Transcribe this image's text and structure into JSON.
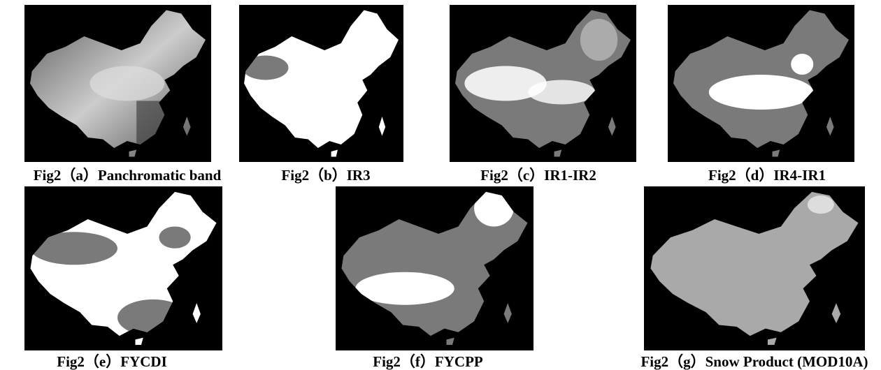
{
  "figures": [
    {
      "caption": "Fig2（a）Panchromatic band"
    },
    {
      "caption": "Fig2（b）IR3"
    },
    {
      "caption": "Fig2（c）IR1-IR2"
    },
    {
      "caption": "Fig2（d）IR4-IR1"
    },
    {
      "caption": "Fig2（e）FYCDI"
    },
    {
      "caption": "Fig2（f）FYCPP"
    },
    {
      "caption": "Fig2（g）Snow Product (MOD10A)"
    }
  ]
}
